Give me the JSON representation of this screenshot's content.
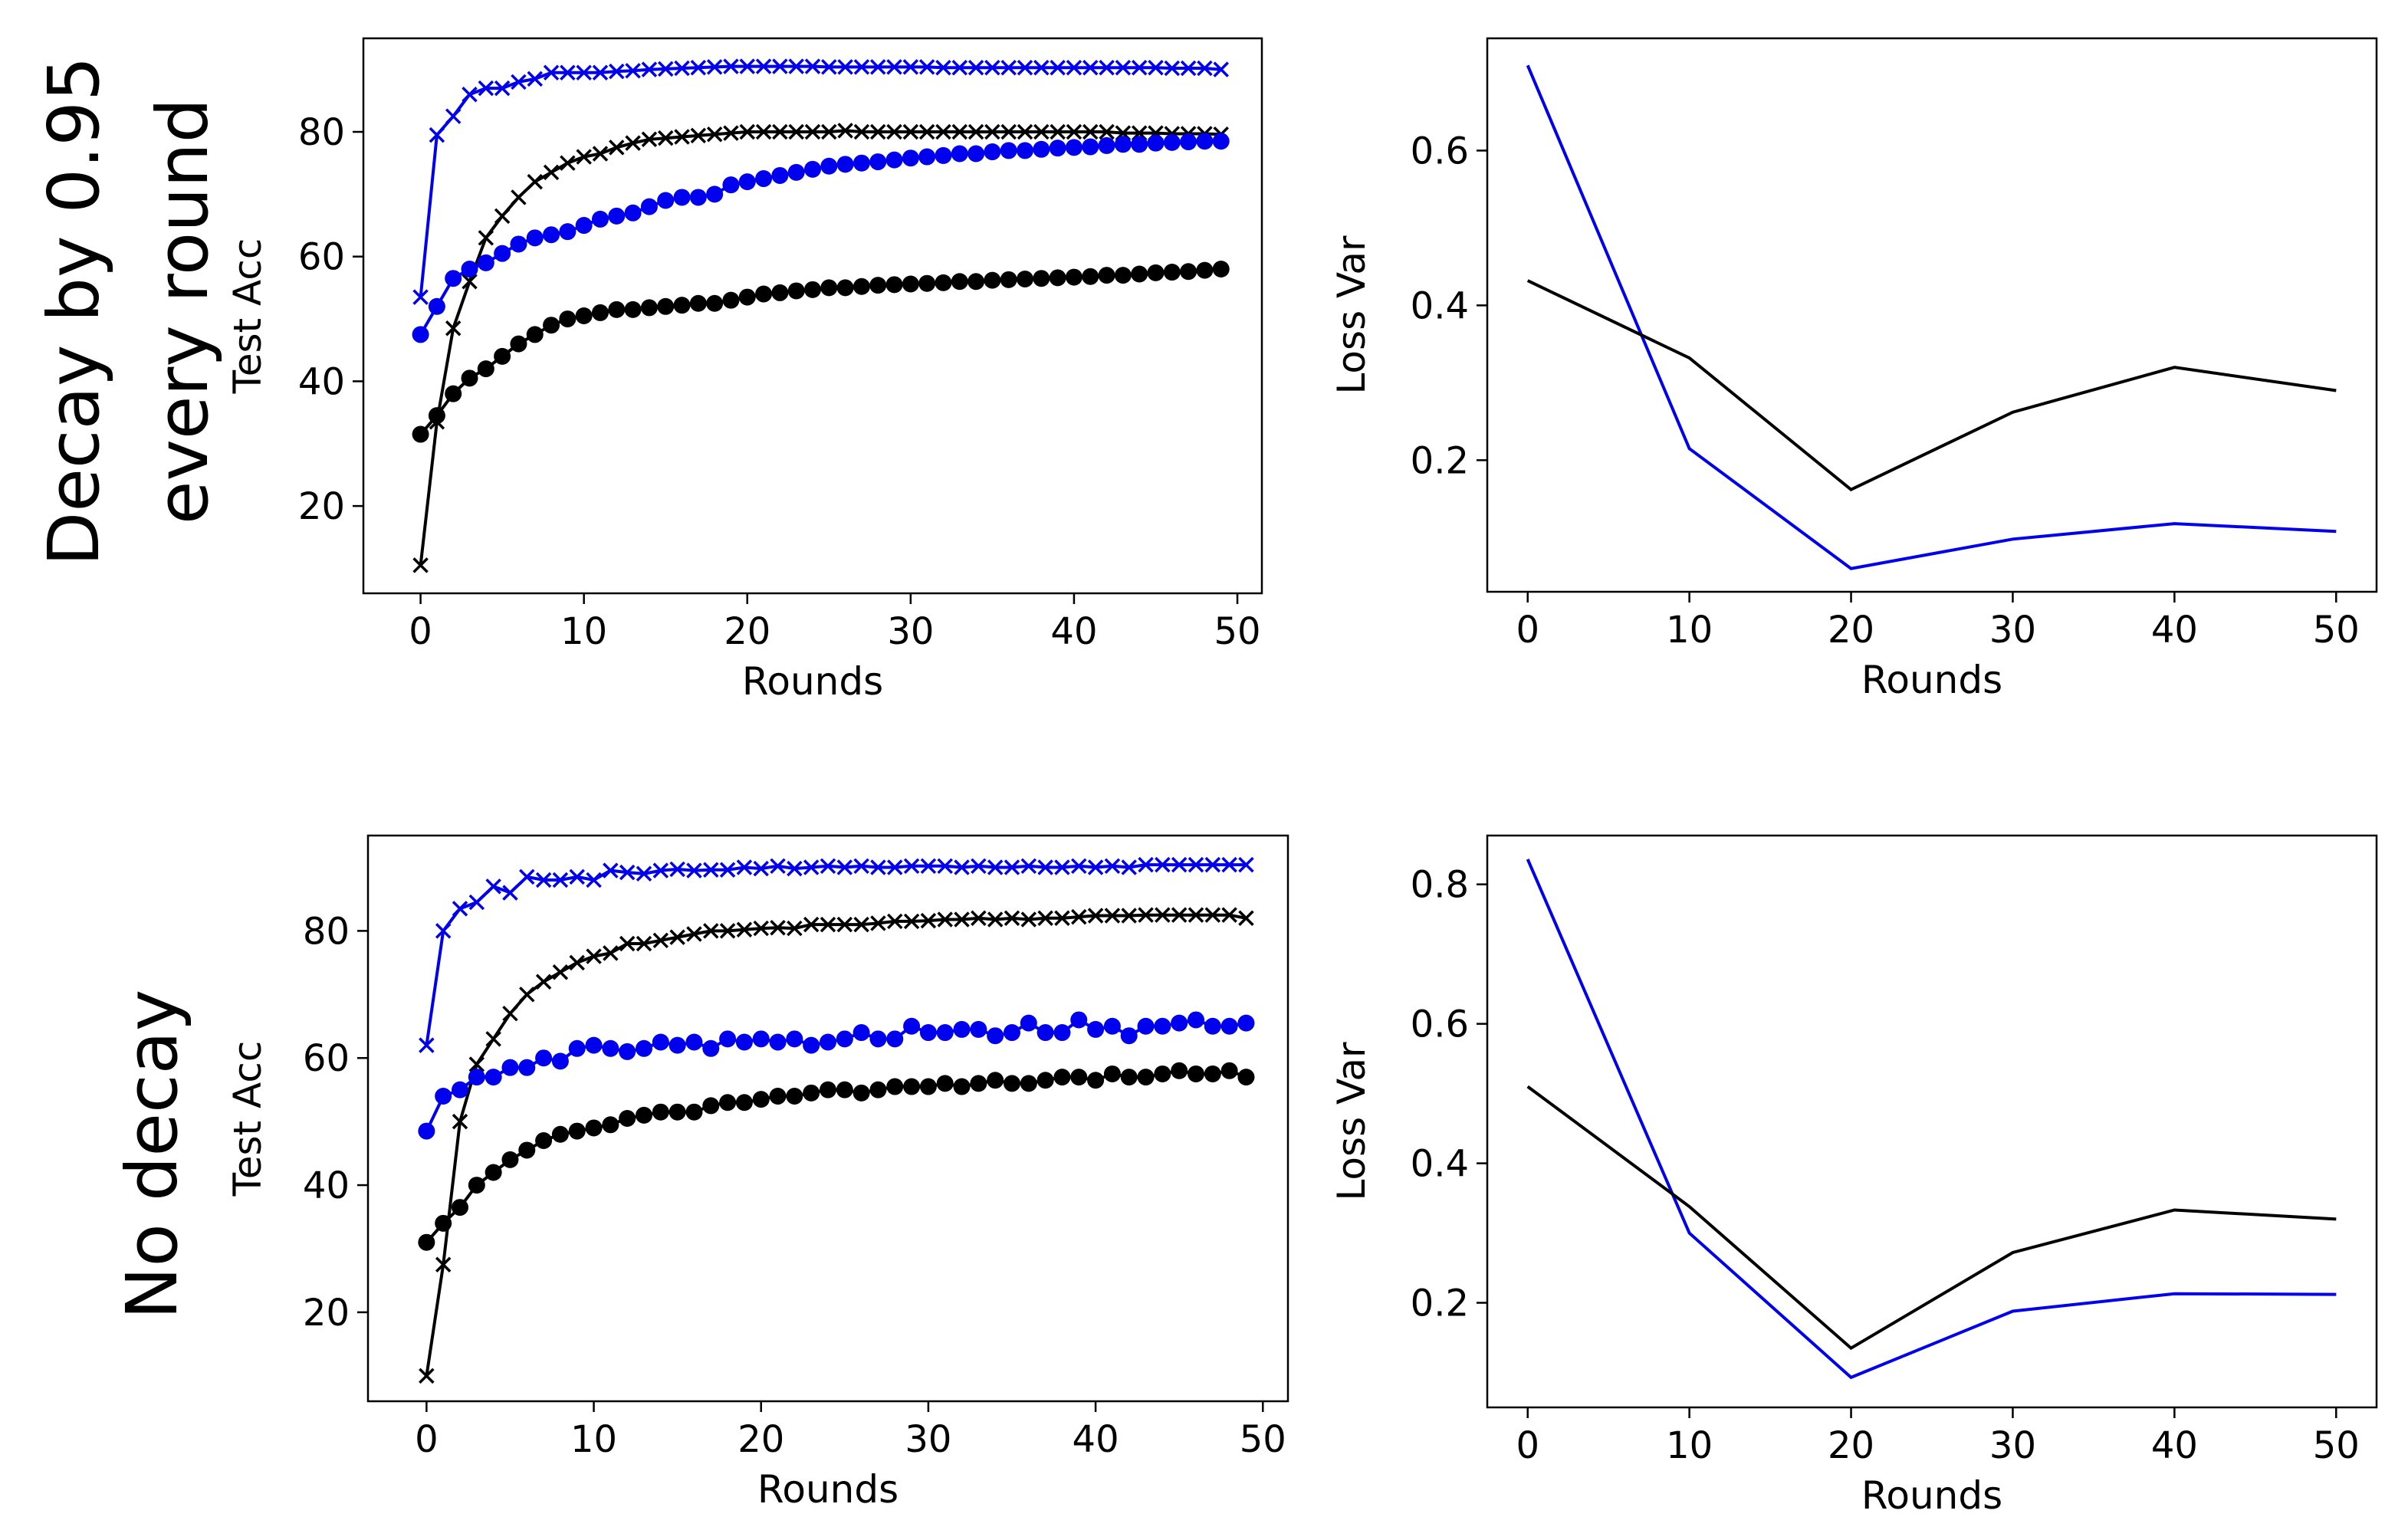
{
  "row_labels": [
    "Decay by 0.95",
    "every round",
    "No decay"
  ],
  "colors": {
    "blue": "#0000ee",
    "black": "#000000"
  },
  "chart_data": [
    {
      "id": "acc-decay",
      "type": "line",
      "xlabel": "Rounds",
      "ylabel": "Test Acc",
      "xlim": [
        -3.5,
        51.5
      ],
      "ylim": [
        6,
        95
      ],
      "xticks": [
        0,
        10,
        20,
        30,
        40,
        50
      ],
      "yticks": [
        20,
        40,
        60,
        80
      ],
      "series": [
        {
          "name": "blue-x",
          "color": "#0000ee",
          "marker": "x",
          "x": [
            0,
            1,
            2,
            3,
            4,
            5,
            6,
            7,
            8,
            9,
            10,
            11,
            12,
            13,
            14,
            15,
            16,
            17,
            18,
            19,
            20,
            21,
            22,
            23,
            24,
            25,
            26,
            27,
            28,
            29,
            30,
            31,
            32,
            33,
            34,
            35,
            36,
            37,
            38,
            39,
            40,
            41,
            42,
            43,
            44,
            45,
            46,
            47,
            48,
            49
          ],
          "y": [
            53.5,
            79.5,
            82.5,
            86,
            87,
            87,
            88,
            88.5,
            89.5,
            89.5,
            89.5,
            89.5,
            89.7,
            89.8,
            90,
            90.1,
            90.2,
            90.3,
            90.4,
            90.5,
            90.5,
            90.5,
            90.5,
            90.5,
            90.5,
            90.4,
            90.4,
            90.4,
            90.4,
            90.4,
            90.4,
            90.4,
            90.3,
            90.3,
            90.3,
            90.3,
            90.3,
            90.3,
            90.3,
            90.3,
            90.3,
            90.3,
            90.3,
            90.3,
            90.3,
            90.3,
            90.2,
            90.2,
            90.2,
            90
          ]
        },
        {
          "name": "black-x",
          "color": "#000000",
          "marker": "x",
          "x": [
            0,
            1,
            2,
            3,
            4,
            5,
            6,
            7,
            8,
            9,
            10,
            11,
            12,
            13,
            14,
            15,
            16,
            17,
            18,
            19,
            20,
            21,
            22,
            23,
            24,
            25,
            26,
            27,
            28,
            29,
            30,
            31,
            32,
            33,
            34,
            35,
            36,
            37,
            38,
            39,
            40,
            41,
            42,
            43,
            44,
            45,
            46,
            47,
            48,
            49
          ],
          "y": [
            10.5,
            33.5,
            48.5,
            56,
            63,
            66.5,
            69.5,
            72,
            73.5,
            75,
            76,
            76.5,
            77.5,
            78.2,
            78.8,
            79,
            79.2,
            79.4,
            79.6,
            79.8,
            80,
            80,
            80,
            80,
            80,
            80,
            80.2,
            80,
            80,
            80,
            80,
            80,
            80,
            80,
            80,
            80,
            80,
            80,
            80,
            80,
            80,
            80,
            80,
            79.8,
            79.8,
            79.8,
            79.7,
            79.7,
            79.7,
            79.6
          ]
        },
        {
          "name": "blue-dot",
          "color": "#0000ee",
          "marker": "o",
          "x": [
            0,
            1,
            2,
            3,
            4,
            5,
            6,
            7,
            8,
            9,
            10,
            11,
            12,
            13,
            14,
            15,
            16,
            17,
            18,
            19,
            20,
            21,
            22,
            23,
            24,
            25,
            26,
            27,
            28,
            29,
            30,
            31,
            32,
            33,
            34,
            35,
            36,
            37,
            38,
            39,
            40,
            41,
            42,
            43,
            44,
            45,
            46,
            47,
            48,
            49
          ],
          "y": [
            47.5,
            52,
            56.5,
            58,
            59,
            60.5,
            62,
            63,
            63.5,
            64,
            65,
            66,
            66.5,
            67,
            68,
            69,
            69.5,
            69.5,
            70,
            71.5,
            72,
            72.5,
            73,
            73.5,
            74,
            74.5,
            74.8,
            75,
            75.2,
            75.5,
            75.8,
            76,
            76.2,
            76.5,
            76.5,
            76.8,
            77,
            77,
            77.2,
            77.4,
            77.5,
            77.6,
            77.8,
            78,
            78,
            78.2,
            78.3,
            78.4,
            78.5,
            78.5
          ]
        },
        {
          "name": "black-dot",
          "color": "#000000",
          "marker": "o",
          "x": [
            0,
            1,
            2,
            3,
            4,
            5,
            6,
            7,
            8,
            9,
            10,
            11,
            12,
            13,
            14,
            15,
            16,
            17,
            18,
            19,
            20,
            21,
            22,
            23,
            24,
            25,
            26,
            27,
            28,
            29,
            30,
            31,
            32,
            33,
            34,
            35,
            36,
            37,
            38,
            39,
            40,
            41,
            42,
            43,
            44,
            45,
            46,
            47,
            48,
            49
          ],
          "y": [
            31.5,
            34.5,
            38,
            40.5,
            42,
            44,
            46,
            47.5,
            49,
            50,
            50.5,
            51,
            51.5,
            51.5,
            51.8,
            52,
            52.2,
            52.5,
            52.5,
            53,
            53.5,
            54,
            54.2,
            54.5,
            54.7,
            55,
            55,
            55.2,
            55.4,
            55.5,
            55.6,
            55.7,
            55.8,
            56,
            56,
            56.2,
            56.3,
            56.4,
            56.5,
            56.6,
            56.7,
            56.8,
            57,
            57,
            57.2,
            57.4,
            57.5,
            57.6,
            57.8,
            58
          ]
        }
      ]
    },
    {
      "id": "var-decay",
      "type": "line",
      "xlabel": "Rounds",
      "ylabel": "Loss Var",
      "xlim": [
        -2.5,
        52.5
      ],
      "ylim": [
        0.03,
        0.745
      ],
      "xticks": [
        0,
        10,
        20,
        30,
        40,
        50
      ],
      "yticks": [
        "0.2",
        "0.4",
        "0.6"
      ],
      "series": [
        {
          "name": "blue",
          "color": "#0000ee",
          "x": [
            0,
            10,
            20,
            30,
            40,
            50
          ],
          "y": [
            0.71,
            0.215,
            0.06,
            0.098,
            0.118,
            0.108
          ]
        },
        {
          "name": "black",
          "color": "#000000",
          "x": [
            0,
            10,
            20,
            30,
            40,
            50
          ],
          "y": [
            0.432,
            0.332,
            0.162,
            0.262,
            0.32,
            0.29
          ]
        }
      ]
    },
    {
      "id": "acc-nodecay",
      "type": "line",
      "xlabel": "Rounds",
      "ylabel": "Test Acc",
      "xlim": [
        -3.5,
        51.5
      ],
      "ylim": [
        6,
        95
      ],
      "xticks": [
        0,
        10,
        20,
        30,
        40,
        50
      ],
      "yticks": [
        20,
        40,
        60,
        80
      ],
      "series": [
        {
          "name": "blue-x",
          "color": "#0000ee",
          "marker": "x",
          "x": [
            0,
            1,
            2,
            3,
            4,
            5,
            6,
            7,
            8,
            9,
            10,
            11,
            12,
            13,
            14,
            15,
            16,
            17,
            18,
            19,
            20,
            21,
            22,
            23,
            24,
            25,
            26,
            27,
            28,
            29,
            30,
            31,
            32,
            33,
            34,
            35,
            36,
            37,
            38,
            39,
            40,
            41,
            42,
            43,
            44,
            45,
            46,
            47,
            48,
            49
          ],
          "y": [
            62,
            80,
            83.5,
            84.5,
            87,
            86,
            88.5,
            88,
            88,
            88.5,
            88,
            89.5,
            89.2,
            89,
            89.5,
            89.7,
            89.5,
            89.6,
            89.6,
            90,
            89.8,
            90.2,
            89.8,
            90,
            90.2,
            90,
            90.2,
            90,
            90,
            90.2,
            90.2,
            90.2,
            90,
            90.2,
            90,
            90,
            90.2,
            90,
            90,
            90.2,
            90,
            90.2,
            90,
            90.4,
            90.4,
            90.4,
            90.4,
            90.4,
            90.4,
            90.4
          ]
        },
        {
          "name": "black-x",
          "color": "#000000",
          "marker": "x",
          "x": [
            0,
            1,
            2,
            3,
            4,
            5,
            6,
            7,
            8,
            9,
            10,
            11,
            12,
            13,
            14,
            15,
            16,
            17,
            18,
            19,
            20,
            21,
            22,
            23,
            24,
            25,
            26,
            27,
            28,
            29,
            30,
            31,
            32,
            33,
            34,
            35,
            36,
            37,
            38,
            39,
            40,
            41,
            42,
            43,
            44,
            45,
            46,
            47,
            48,
            49
          ],
          "y": [
            10,
            27.5,
            50,
            59,
            63,
            67,
            70,
            72,
            73.5,
            75,
            76,
            76.5,
            78,
            78,
            78.5,
            79,
            79.5,
            80,
            80,
            80.2,
            80.4,
            80.5,
            80.4,
            81,
            81,
            81,
            81,
            81.2,
            81.5,
            81.5,
            81.6,
            81.8,
            81.8,
            82,
            81.8,
            82,
            81.8,
            82,
            82,
            82.2,
            82.4,
            82.4,
            82.4,
            82.5,
            82.5,
            82.5,
            82.5,
            82.5,
            82.5,
            82
          ]
        },
        {
          "name": "blue-dot",
          "color": "#0000ee",
          "marker": "o",
          "x": [
            0,
            1,
            2,
            3,
            4,
            5,
            6,
            7,
            8,
            9,
            10,
            11,
            12,
            13,
            14,
            15,
            16,
            17,
            18,
            19,
            20,
            21,
            22,
            23,
            24,
            25,
            26,
            27,
            28,
            29,
            30,
            31,
            32,
            33,
            34,
            35,
            36,
            37,
            38,
            39,
            40,
            41,
            42,
            43,
            44,
            45,
            46,
            47,
            48,
            49
          ],
          "y": [
            48.5,
            54,
            55,
            57,
            57,
            58.5,
            58.5,
            60,
            59.5,
            61.5,
            62,
            61.5,
            61,
            61.5,
            62.5,
            62,
            62.5,
            61.5,
            63,
            62.5,
            63,
            62.5,
            63,
            62,
            62.5,
            63,
            64,
            63,
            63,
            65,
            64,
            64,
            64.5,
            64.5,
            63.5,
            64,
            65.5,
            64,
            64,
            66,
            64.5,
            65,
            63.5,
            65,
            65,
            65.5,
            66,
            65,
            65,
            65.5
          ]
        },
        {
          "name": "black-dot",
          "color": "#000000",
          "marker": "o",
          "x": [
            0,
            1,
            2,
            3,
            4,
            5,
            6,
            7,
            8,
            9,
            10,
            11,
            12,
            13,
            14,
            15,
            16,
            17,
            18,
            19,
            20,
            21,
            22,
            23,
            24,
            25,
            26,
            27,
            28,
            29,
            30,
            31,
            32,
            33,
            34,
            35,
            36,
            37,
            38,
            39,
            40,
            41,
            42,
            43,
            44,
            45,
            46,
            47,
            48,
            49
          ],
          "y": [
            31,
            34,
            36.5,
            40,
            42,
            44,
            45.5,
            47,
            48,
            48.5,
            49,
            49.5,
            50.5,
            51,
            51.5,
            51.5,
            51.5,
            52.5,
            53,
            53,
            53.5,
            54,
            54,
            54.5,
            55,
            55,
            54.5,
            55,
            55.5,
            55.5,
            55.5,
            56,
            55.5,
            56,
            56.5,
            56,
            56,
            56.5,
            57,
            57,
            56.5,
            57.5,
            57,
            57,
            57.5,
            58,
            57.5,
            57.5,
            58,
            57
          ]
        }
      ]
    },
    {
      "id": "var-nodecay",
      "type": "line",
      "xlabel": "Rounds",
      "ylabel": "Loss Var",
      "xlim": [
        -2.5,
        52.5
      ],
      "ylim": [
        0.05,
        0.87
      ],
      "xticks": [
        0,
        10,
        20,
        30,
        40,
        50
      ],
      "yticks": [
        "0.2",
        "0.4",
        "0.6",
        "0.8"
      ],
      "series": [
        {
          "name": "blue",
          "color": "#0000ee",
          "x": [
            0,
            10,
            20,
            30,
            40,
            50
          ],
          "y": [
            0.836,
            0.3,
            0.093,
            0.188,
            0.213,
            0.212
          ]
        },
        {
          "name": "black",
          "color": "#000000",
          "x": [
            0,
            10,
            20,
            30,
            40,
            50
          ],
          "y": [
            0.51,
            0.338,
            0.135,
            0.272,
            0.333,
            0.32
          ]
        }
      ]
    }
  ]
}
